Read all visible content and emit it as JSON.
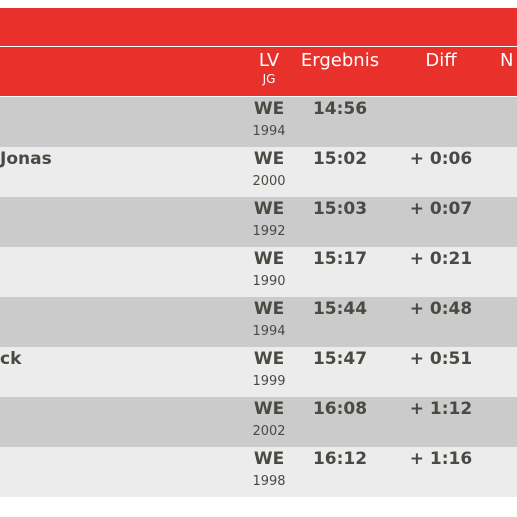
{
  "header": {
    "lv_label": "LV",
    "jg_label": "JG",
    "ergebnis_label": "Ergebnis",
    "diff_label": "Diff",
    "next_label": "N"
  },
  "rows": [
    {
      "name": "",
      "lv": "WE",
      "jg": "1994",
      "ergebnis": "14:56",
      "diff": ""
    },
    {
      "name": "Jonas",
      "lv": "WE",
      "jg": "2000",
      "ergebnis": "15:02",
      "diff": "+ 0:06"
    },
    {
      "name": "",
      "lv": "WE",
      "jg": "1992",
      "ergebnis": "15:03",
      "diff": "+ 0:07"
    },
    {
      "name": "",
      "lv": "WE",
      "jg": "1990",
      "ergebnis": "15:17",
      "diff": "+ 0:21"
    },
    {
      "name": "",
      "lv": "WE",
      "jg": "1994",
      "ergebnis": "15:44",
      "diff": "+ 0:48"
    },
    {
      "name": "ck",
      "lv": "WE",
      "jg": "1999",
      "ergebnis": "15:47",
      "diff": "+ 0:51"
    },
    {
      "name": "",
      "lv": "WE",
      "jg": "2002",
      "ergebnis": "16:08",
      "diff": "+ 1:12"
    },
    {
      "name": "",
      "lv": "WE",
      "jg": "1998",
      "ergebnis": "16:12",
      "diff": "+ 1:16"
    }
  ]
}
